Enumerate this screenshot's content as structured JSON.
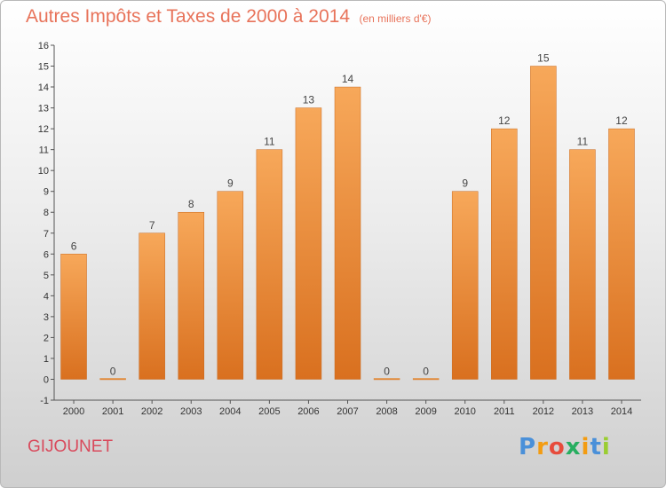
{
  "title": "Autres Impôts et Taxes de 2000 à 2014",
  "unit": "(en milliers d'€)",
  "commune": "GIJOUNET",
  "logo": {
    "text": "Proxiti",
    "letter_colors": [
      "#4a90d9",
      "#f39c12",
      "#e74c3c",
      "#27ae60",
      "#f39c12",
      "#4a90d9",
      "#9acd32"
    ]
  },
  "chart_data": {
    "type": "bar",
    "categories": [
      "2000",
      "2001",
      "2002",
      "2003",
      "2004",
      "2005",
      "2006",
      "2007",
      "2008",
      "2009",
      "2010",
      "2011",
      "2012",
      "2013",
      "2014"
    ],
    "values": [
      6,
      0,
      7,
      8,
      9,
      11,
      13,
      14,
      0,
      0,
      9,
      12,
      15,
      11,
      12
    ],
    "ylim": [
      -1,
      16
    ],
    "yticks": [
      -1,
      0,
      1,
      2,
      3,
      4,
      5,
      6,
      7,
      8,
      9,
      10,
      11,
      12,
      13,
      14,
      15,
      16
    ],
    "grid": false,
    "bar_color": "#f0923a",
    "bar_gradient": [
      "#f7a85a",
      "#d9701f"
    ]
  }
}
